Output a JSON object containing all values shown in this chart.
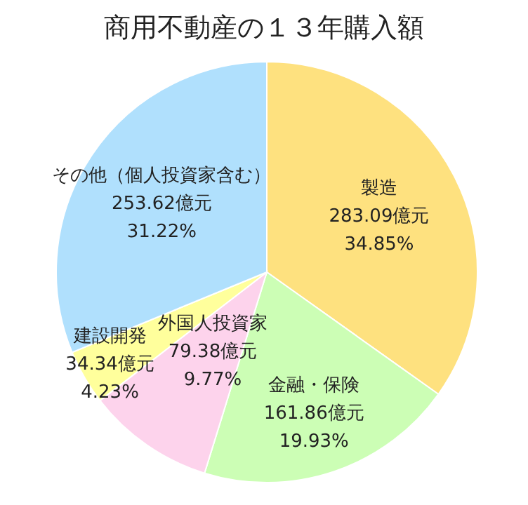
{
  "chart_data": {
    "type": "pie",
    "title": "商用不動産の１３年購入額",
    "categories": [
      "製造",
      "金融・保険",
      "外国人投資家",
      "建設開発",
      "その他（個人投資家含む）"
    ],
    "values": [
      283.09,
      161.86,
      79.38,
      34.34,
      253.62
    ],
    "value_labels": [
      "283.09億元",
      "161.86億元",
      "79.38億元",
      "34.34億元",
      "253.62億元"
    ],
    "colors": [
      "#fee17f",
      "#ccfeb5",
      "#fdd3ec",
      "#ffff9c",
      "#b0e0fd"
    ],
    "annotations": [
      {
        "text": "34.85%",
        "x": "製造"
      },
      {
        "text": "19.93%",
        "x": "金融・保険"
      },
      {
        "text": "9.77%",
        "x": "外国人投資家"
      },
      {
        "text": "4.23%",
        "x": "建設開発"
      },
      {
        "text": "31.22%",
        "x": "その他（個人投資家含む）"
      }
    ]
  }
}
